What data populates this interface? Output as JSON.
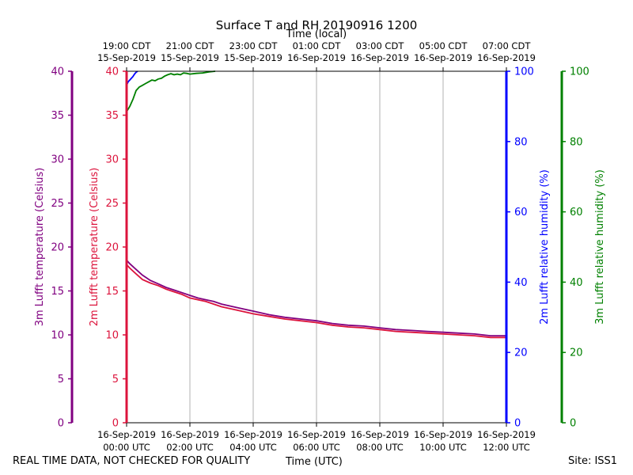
{
  "footer": {
    "disclaimer": "REAL TIME DATA, NOT CHECKED FOR QUALITY",
    "site": "Site: ISS1"
  },
  "chart_data": {
    "type": "line",
    "title": "Surface T and RH 20190916 1200",
    "top_axis_label": "Time (local)",
    "xlabel": "Time (UTC)",
    "x_utc_ticks": [
      [
        "16-Sep-2019",
        "00:00 UTC"
      ],
      [
        "16-Sep-2019",
        "02:00 UTC"
      ],
      [
        "16-Sep-2019",
        "04:00 UTC"
      ],
      [
        "16-Sep-2019",
        "06:00 UTC"
      ],
      [
        "16-Sep-2019",
        "08:00 UTC"
      ],
      [
        "16-Sep-2019",
        "10:00 UTC"
      ],
      [
        "16-Sep-2019",
        "12:00 UTC"
      ]
    ],
    "x_local_ticks": [
      [
        "19:00 CDT",
        "15-Sep-2019"
      ],
      [
        "21:00 CDT",
        "15-Sep-2019"
      ],
      [
        "23:00 CDT",
        "15-Sep-2019"
      ],
      [
        "01:00 CDT",
        "16-Sep-2019"
      ],
      [
        "03:00 CDT",
        "16-Sep-2019"
      ],
      [
        "05:00 CDT",
        "16-Sep-2019"
      ],
      [
        "07:00 CDT",
        "16-Sep-2019"
      ]
    ],
    "x_hours": [
      0,
      2,
      4,
      6,
      8,
      10,
      12
    ],
    "axes": {
      "t3m": {
        "label": "3m Lufft temperature (Celsius)",
        "range": [
          0,
          40
        ],
        "ticks": [
          0,
          5,
          10,
          15,
          20,
          25,
          30,
          35,
          40
        ],
        "color": "#800080"
      },
      "t2m": {
        "label": "2m Lufft temperature (Celsius)",
        "range": [
          0,
          40
        ],
        "ticks": [
          0,
          5,
          10,
          15,
          20,
          25,
          30,
          35,
          40
        ],
        "color": "#dc143c"
      },
      "rh2m": {
        "label": "2m Lufft relative humidity (%)",
        "range": [
          0,
          100
        ],
        "ticks": [
          0,
          20,
          40,
          60,
          80,
          100
        ],
        "color": "#0000ff"
      },
      "rh3m": {
        "label": "3m Lufft relative humidity (%)",
        "range": [
          0,
          100
        ],
        "ticks": [
          0,
          20,
          40,
          60,
          80,
          100
        ],
        "color": "#008000"
      }
    },
    "grid": "vertical",
    "series": [
      {
        "axis": "t3m",
        "color": "#800080",
        "x": [
          0,
          0.1,
          0.25,
          0.5,
          0.75,
          1,
          1.25,
          1.5,
          1.75,
          2,
          2.25,
          2.5,
          2.75,
          3,
          3.5,
          4,
          4.5,
          5,
          5.5,
          6,
          6.5,
          7,
          7.5,
          8,
          8.5,
          9,
          9.5,
          10,
          10.5,
          11,
          11.5,
          12
        ],
        "y": [
          18.5,
          18.1,
          17.6,
          16.8,
          16.2,
          15.8,
          15.4,
          15.1,
          14.8,
          14.5,
          14.2,
          14.0,
          13.8,
          13.5,
          13.1,
          12.7,
          12.3,
          12.0,
          11.8,
          11.6,
          11.3,
          11.1,
          11.0,
          10.8,
          10.6,
          10.5,
          10.4,
          10.3,
          10.2,
          10.1,
          9.9,
          9.9
        ]
      },
      {
        "axis": "t2m",
        "color": "#dc143c",
        "x": [
          0,
          0.1,
          0.25,
          0.5,
          0.75,
          1,
          1.25,
          1.5,
          1.75,
          2,
          2.25,
          2.5,
          2.75,
          3,
          3.5,
          4,
          4.5,
          5,
          5.5,
          6,
          6.5,
          7,
          7.5,
          8,
          8.5,
          9,
          9.5,
          10,
          10.5,
          11,
          11.5,
          12
        ],
        "y": [
          18.0,
          17.6,
          17.1,
          16.3,
          15.9,
          15.6,
          15.2,
          14.9,
          14.6,
          14.2,
          14.0,
          13.8,
          13.5,
          13.2,
          12.8,
          12.4,
          12.1,
          11.8,
          11.6,
          11.4,
          11.1,
          10.9,
          10.8,
          10.6,
          10.4,
          10.3,
          10.2,
          10.1,
          10.0,
          9.9,
          9.7,
          9.7
        ]
      },
      {
        "axis": "rh2m",
        "color": "#0000ff",
        "x": [
          0,
          0.05,
          0.1,
          0.15,
          0.2,
          0.25,
          0.3,
          0.35
        ],
        "y": [
          96,
          97,
          97.5,
          98,
          98.5,
          99.2,
          99.7,
          100
        ]
      },
      {
        "axis": "rh3m",
        "color": "#008000",
        "x": [
          0,
          0.1,
          0.2,
          0.3,
          0.4,
          0.5,
          0.6,
          0.7,
          0.8,
          0.9,
          1.0,
          1.1,
          1.2,
          1.3,
          1.4,
          1.5,
          1.6,
          1.7,
          1.8,
          1.9,
          2.0,
          2.2,
          2.4,
          2.6,
          2.8
        ],
        "y": [
          88.5,
          90,
          92,
          94.5,
          95.5,
          96.0,
          96.5,
          97.0,
          97.5,
          97.3,
          97.8,
          98.0,
          98.6,
          99.0,
          99.3,
          99.0,
          99.2,
          99.0,
          99.5,
          99.4,
          99.2,
          99.4,
          99.5,
          99.8,
          100
        ]
      }
    ]
  }
}
